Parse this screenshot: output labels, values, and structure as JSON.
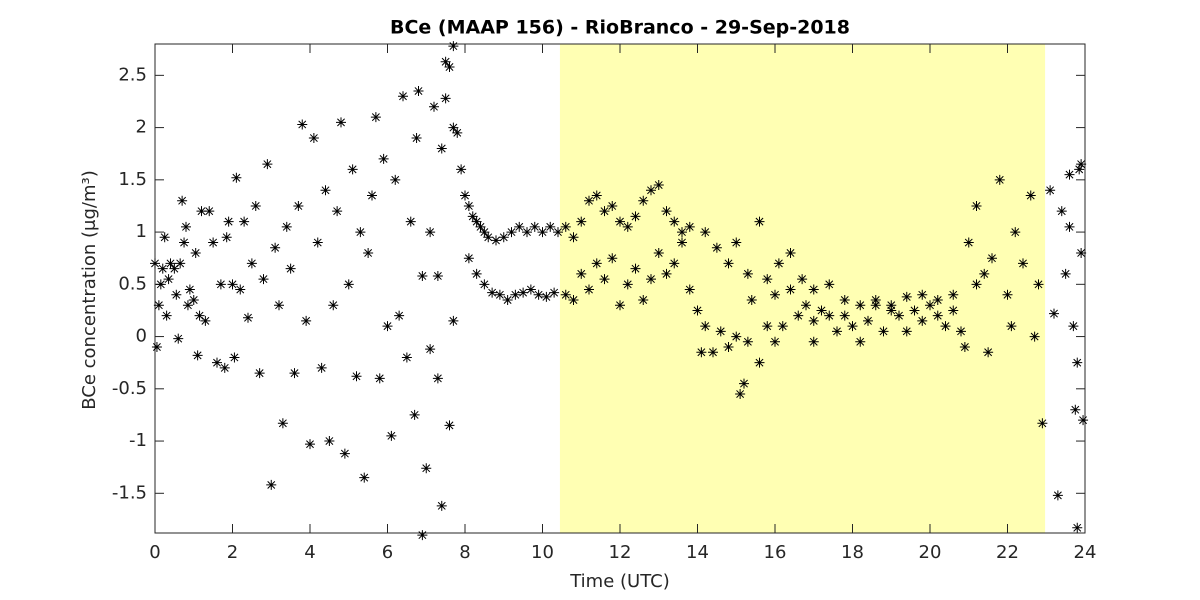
{
  "chart_data": {
    "type": "scatter",
    "title": "BCe (MAAP 156) - RioBranco - 29-Sep-2018",
    "x_label": "Time (UTC)",
    "y_label": "BCe concentration (μg/m³)",
    "xlim": [
      0,
      24
    ],
    "ylim": [
      -1.88,
      2.8
    ],
    "xticks": [
      0,
      2,
      4,
      6,
      8,
      10,
      12,
      14,
      16,
      18,
      20,
      22,
      24
    ],
    "yticks": [
      -1.5,
      -1,
      -0.5,
      0,
      0.5,
      1,
      1.5,
      2,
      2.5
    ],
    "highlight": {
      "xrange": [
        10.45,
        22.97
      ],
      "color": "#ffffb3"
    },
    "color": "#000000",
    "x": [
      0,
      0.05,
      0.1,
      0.15,
      0.2,
      0.25,
      0.3,
      0.35,
      0.4,
      0.5,
      0.55,
      0.6,
      0.65,
      0.7,
      0.75,
      0.8,
      0.85,
      0.9,
      1.0,
      1.05,
      1.1,
      1.15,
      1.2,
      1.3,
      1.4,
      1.5,
      1.6,
      1.7,
      1.8,
      1.85,
      1.9,
      2.0,
      2.05,
      2.1,
      2.2,
      2.3,
      2.4,
      2.5,
      2.6,
      2.7,
      2.8,
      2.9,
      3.0,
      3.1,
      3.2,
      3.3,
      3.4,
      3.5,
      3.6,
      3.7,
      3.8,
      3.9,
      4.0,
      4.1,
      4.2,
      4.3,
      4.4,
      4.5,
      4.6,
      4.7,
      4.8,
      4.9,
      5.0,
      5.1,
      5.2,
      5.3,
      5.4,
      5.5,
      5.6,
      5.7,
      5.8,
      5.9,
      6.0,
      6.1,
      6.2,
      6.3,
      6.4,
      6.5,
      6.6,
      6.7,
      6.8,
      6.9,
      7.0,
      7.1,
      7.2,
      7.3,
      7.4,
      7.5,
      7.6,
      7.7,
      7.7,
      7.6,
      7.5,
      7.4,
      7.3,
      6.9,
      6.75,
      7.1,
      7.7,
      7.8,
      7.9,
      8.0,
      8.1,
      8.2,
      8.3,
      8.4,
      8.5,
      8.6,
      8.8,
      9.0,
      9.2,
      9.4,
      9.6,
      9.8,
      10.0,
      10.2,
      10.4,
      8.1,
      8.3,
      8.5,
      8.7,
      8.9,
      9.1,
      9.3,
      9.5,
      9.7,
      9.9,
      10.1,
      10.3,
      10.6,
      10.8,
      11.0,
      11.2,
      11.4,
      11.6,
      11.8,
      12.0,
      12.2,
      12.4,
      12.6,
      12.8,
      13.0,
      13.2,
      13.4,
      13.6,
      13.8,
      10.6,
      10.8,
      11.0,
      11.2,
      11.4,
      11.6,
      11.8,
      12.0,
      12.2,
      12.4,
      12.6,
      12.8,
      13.0,
      13.2,
      13.4,
      13.6,
      13.8,
      14.0,
      14.2,
      14.4,
      14.6,
      14.8,
      15.0,
      15.1,
      15.2,
      15.4,
      15.6,
      15.8,
      16.0,
      16.2,
      16.4,
      16.6,
      16.8,
      17.0,
      17.2,
      17.4,
      17.6,
      17.8,
      18.0,
      18.2,
      18.4,
      18.6,
      18.8,
      19.0,
      19.2,
      19.4,
      19.6,
      19.8,
      20.0,
      20.2,
      20.4,
      20.6,
      20.8,
      14.2,
      14.5,
      14.8,
      15.0,
      15.3,
      15.6,
      15.8,
      16.1,
      16.4,
      16.7,
      17.0,
      17.4,
      17.8,
      18.2,
      18.6,
      19.0,
      19.4,
      19.8,
      20.2,
      20.6,
      14.1,
      15.3,
      16.0,
      17.0,
      20.9,
      21.2,
      21.0,
      21.2,
      21.4,
      21.6,
      21.8,
      22.0,
      22.2,
      22.4,
      22.6,
      22.8,
      22.9,
      21.5,
      22.1,
      22.7,
      23.1,
      23.2,
      23.3,
      23.4,
      23.5,
      23.6,
      23.7,
      23.75,
      23.8,
      23.85,
      23.9,
      23.95,
      23.8,
      23.9,
      23.6
    ],
    "values": [
      0.7,
      -0.1,
      0.3,
      0.5,
      0.65,
      0.95,
      0.2,
      0.55,
      0.7,
      0.65,
      0.4,
      -0.02,
      0.7,
      1.3,
      0.9,
      1.05,
      0.3,
      0.45,
      0.35,
      0.8,
      -0.18,
      0.2,
      1.2,
      0.15,
      1.2,
      0.9,
      -0.25,
      0.5,
      -0.3,
      0.95,
      1.1,
      0.5,
      -0.2,
      1.52,
      0.45,
      1.1,
      0.18,
      0.7,
      1.25,
      -0.35,
      0.55,
      1.65,
      -1.42,
      0.85,
      0.3,
      -0.83,
      1.05,
      0.65,
      -0.35,
      1.25,
      2.03,
      0.15,
      -1.03,
      1.9,
      0.9,
      -0.3,
      1.4,
      -1.0,
      0.3,
      1.2,
      2.05,
      -1.12,
      0.5,
      1.6,
      -0.38,
      1.0,
      -1.35,
      0.8,
      1.35,
      2.1,
      -0.4,
      1.7,
      0.1,
      -0.95,
      1.5,
      0.2,
      2.3,
      -0.2,
      1.1,
      -0.75,
      2.35,
      0.58,
      -1.26,
      1.0,
      2.2,
      -0.4,
      1.8,
      2.63,
      -0.85,
      0.15,
      2.78,
      2.58,
      2.28,
      -1.62,
      0.58,
      -1.9,
      1.9,
      -0.12,
      2.0,
      1.95,
      1.6,
      1.35,
      1.25,
      1.15,
      1.1,
      1.05,
      1.0,
      0.95,
      0.92,
      0.95,
      1.0,
      1.05,
      1.0,
      1.05,
      1.0,
      1.05,
      1.0,
      0.75,
      0.6,
      0.5,
      0.42,
      0.4,
      0.35,
      0.4,
      0.42,
      0.45,
      0.4,
      0.38,
      0.42,
      1.05,
      0.95,
      1.1,
      1.3,
      1.35,
      1.2,
      1.25,
      1.1,
      1.05,
      1.15,
      1.3,
      1.4,
      1.45,
      1.2,
      1.1,
      1.0,
      1.05,
      0.4,
      0.35,
      0.6,
      0.45,
      0.7,
      0.55,
      0.75,
      0.3,
      0.5,
      0.65,
      0.35,
      0.55,
      0.8,
      0.6,
      0.7,
      0.9,
      0.45,
      0.25,
      0.1,
      -0.15,
      0.05,
      -0.1,
      0.0,
      -0.55,
      -0.45,
      0.35,
      -0.25,
      0.1,
      0.4,
      0.1,
      0.45,
      0.2,
      0.3,
      0.15,
      0.25,
      0.2,
      0.05,
      0.2,
      0.1,
      -0.05,
      0.15,
      0.3,
      0.05,
      0.3,
      0.2,
      0.05,
      0.25,
      0.15,
      0.3,
      0.2,
      0.1,
      0.25,
      0.05,
      1.0,
      0.85,
      0.7,
      0.9,
      0.6,
      1.1,
      0.55,
      0.7,
      0.8,
      0.55,
      0.45,
      0.5,
      0.35,
      0.3,
      0.35,
      0.25,
      0.38,
      0.4,
      0.35,
      0.4,
      -0.15,
      -0.05,
      -0.05,
      -0.05,
      -0.1,
      0.5,
      0.9,
      1.25,
      0.6,
      0.75,
      1.5,
      0.4,
      1.0,
      0.7,
      1.35,
      0.5,
      -0.83,
      -0.15,
      0.1,
      0.0,
      1.4,
      0.22,
      -1.52,
      1.2,
      0.6,
      1.55,
      0.1,
      -0.7,
      -1.83,
      1.6,
      0.8,
      -0.8,
      -0.25,
      1.65,
      1.05
    ]
  }
}
